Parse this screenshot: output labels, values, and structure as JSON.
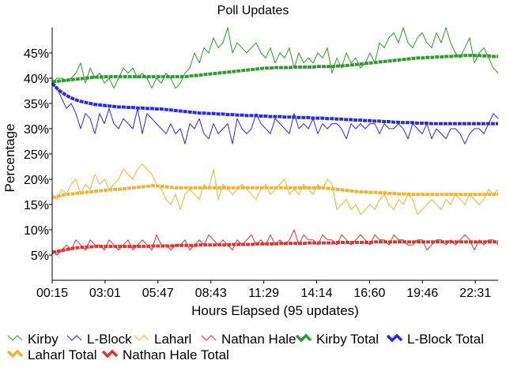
{
  "chart_data": {
    "type": "line",
    "title": "Poll Updates",
    "xlabel": "Hours Elapsed (95 updates)",
    "ylabel": "Percentage",
    "x_tick_labels": [
      "00:15",
      "03:01",
      "05:47",
      "08:43",
      "11:29",
      "14:14",
      "16:60",
      "19:46",
      "22:31"
    ],
    "y_ticks": [
      5,
      10,
      15,
      20,
      25,
      30,
      35,
      40,
      45
    ],
    "y_tick_suffix": "%",
    "ylim": [
      0,
      50
    ],
    "x_count": 95,
    "grid": false,
    "legend_position": "bottom",
    "series": [
      {
        "name": "Kirby",
        "color": "#2e9b2e",
        "style": "thin",
        "values": [
          39,
          40,
          40,
          39.5,
          40,
          41,
          43,
          39,
          42,
          40,
          41,
          39,
          40,
          38,
          40,
          42,
          41,
          42,
          40,
          41,
          40,
          38,
          40,
          39,
          41,
          40,
          38,
          39,
          41,
          42,
          45,
          43,
          46,
          45,
          48,
          46,
          47,
          50,
          45,
          47,
          46,
          45,
          46,
          47,
          45,
          44,
          46,
          43,
          45,
          44,
          46,
          42,
          45,
          43,
          44,
          43,
          45,
          44,
          46,
          41,
          44,
          42,
          45,
          43,
          44,
          42,
          43,
          45,
          43,
          47,
          46,
          48,
          49,
          47,
          50,
          47,
          46,
          48,
          49,
          47,
          46,
          49,
          47,
          50,
          47,
          45,
          44,
          46,
          48,
          43,
          45,
          46,
          44,
          42,
          41
        ]
      },
      {
        "name": "L-Block",
        "color": "#2b2bdc",
        "style": "thin",
        "values": [
          39,
          38,
          36,
          34,
          35,
          33,
          30,
          33,
          32,
          29,
          33,
          31,
          34,
          31,
          30,
          32,
          31,
          30,
          34,
          29,
          33,
          32,
          31,
          30,
          29,
          31,
          29,
          30,
          27,
          31,
          30,
          32,
          29,
          28,
          31,
          29,
          30,
          31,
          27,
          32,
          30,
          29,
          30,
          33,
          31,
          30,
          29,
          32,
          31,
          30,
          29,
          33,
          30,
          31,
          30,
          32,
          29,
          31,
          30,
          31,
          31,
          30,
          28,
          31,
          30,
          31,
          30,
          31,
          31,
          29,
          31,
          30,
          30,
          31,
          30,
          28,
          31,
          30,
          29,
          31,
          28,
          30,
          29,
          28,
          30,
          30,
          29,
          27,
          29,
          30,
          30,
          29,
          31,
          33,
          32
        ]
      },
      {
        "name": "Laharl",
        "color": "#f5b331",
        "style": "thin",
        "values": [
          17,
          16,
          18,
          17,
          19,
          20,
          17,
          19,
          18,
          21,
          19,
          20,
          18,
          19,
          20,
          22,
          21,
          20,
          22,
          23,
          22,
          21,
          19,
          18,
          16,
          15,
          17,
          14,
          17,
          18,
          17,
          16,
          19,
          18,
          22,
          16,
          19,
          18,
          17,
          18,
          19,
          18,
          17,
          16,
          18,
          19,
          17,
          18,
          19,
          20,
          17,
          18,
          17,
          19,
          18,
          17,
          19,
          18,
          20,
          19,
          14,
          15,
          16,
          14,
          15,
          13,
          14,
          15,
          14,
          16,
          17,
          15,
          14,
          16,
          15,
          17,
          16,
          13,
          14,
          15,
          16,
          15,
          14,
          16,
          15,
          17,
          16,
          15,
          17,
          16,
          15,
          16,
          18,
          17,
          18
        ]
      },
      {
        "name": "Nathan Hale",
        "color": "#e23232",
        "style": "thin",
        "values": [
          6,
          5,
          6,
          7,
          6,
          8,
          7,
          6,
          8,
          7,
          7,
          6,
          8,
          7,
          6,
          7,
          8,
          6,
          7,
          8,
          7,
          6,
          9,
          7,
          7,
          6,
          7,
          7,
          8,
          6,
          7,
          8,
          7,
          9,
          8,
          7,
          8,
          7,
          6,
          8,
          7,
          8,
          9,
          7,
          8,
          7,
          9,
          7,
          8,
          7,
          8,
          10,
          7,
          9,
          8,
          8,
          7,
          9,
          8,
          8,
          7,
          9,
          8,
          7,
          8,
          9,
          8,
          7,
          9,
          8,
          8,
          7,
          9,
          8,
          8,
          7,
          7,
          8,
          8,
          6,
          7,
          8,
          8,
          7,
          8,
          7,
          8,
          9,
          8,
          6,
          8,
          7,
          8,
          8,
          7
        ]
      },
      {
        "name": "Kirby Total",
        "color": "#2e9b2e",
        "style": "thick",
        "values": [
          39.3,
          39.4,
          39.5,
          39.6,
          39.7,
          39.8,
          39.9,
          40,
          40.1,
          40.2,
          40.2,
          40.3,
          40.3,
          40.3,
          40.3,
          40.3,
          40.3,
          40.3,
          40.3,
          40.3,
          40.3,
          40.3,
          40.3,
          40.3,
          40.3,
          40.3,
          40.3,
          40.3,
          40.3,
          40.4,
          40.5,
          40.6,
          40.7,
          40.8,
          40.9,
          41,
          41.1,
          41.2,
          41.3,
          41.4,
          41.5,
          41.6,
          41.7,
          41.8,
          41.9,
          42,
          42,
          42.1,
          42.1,
          42.1,
          42.1,
          42.2,
          42.2,
          42.2,
          42.2,
          42.2,
          42.3,
          42.3,
          42.3,
          42.3,
          42.4,
          42.4,
          42.5,
          42.6,
          42.7,
          42.8,
          42.9,
          43,
          43.1,
          43.2,
          43.3,
          43.4,
          43.5,
          43.6,
          43.7,
          43.8,
          43.9,
          44,
          44,
          44.1,
          44.1,
          44.2,
          44.2,
          44.3,
          44.3,
          44.4,
          44.4,
          44.5,
          44.5,
          44.5,
          44.5,
          44.4,
          44.4,
          44.3,
          44.3
        ]
      },
      {
        "name": "L-Block Total",
        "color": "#2b2bdc",
        "style": "thick",
        "values": [
          39,
          38,
          37.2,
          36.6,
          36.1,
          35.7,
          35.4,
          35.2,
          35,
          34.8,
          34.7,
          34.6,
          34.5,
          34.4,
          34.3,
          34.3,
          34.2,
          34.2,
          34.1,
          34.1,
          34,
          34,
          33.9,
          33.9,
          33.8,
          33.7,
          33.6,
          33.5,
          33.4,
          33.3,
          33.2,
          33.1,
          33.1,
          33,
          33,
          32.9,
          32.9,
          32.8,
          32.8,
          32.7,
          32.7,
          32.6,
          32.6,
          32.6,
          32.5,
          32.5,
          32.4,
          32.4,
          32.4,
          32.3,
          32.3,
          32.3,
          32.2,
          32.2,
          32.2,
          32.1,
          32.1,
          32.1,
          32,
          32,
          31.9,
          31.9,
          31.8,
          31.8,
          31.7,
          31.7,
          31.6,
          31.6,
          31.5,
          31.5,
          31.4,
          31.4,
          31.3,
          31.3,
          31.2,
          31.2,
          31.2,
          31.1,
          31.1,
          31.1,
          31,
          31,
          31,
          31,
          31,
          31,
          31,
          31,
          31,
          31,
          31,
          31,
          31,
          31,
          31
        ]
      },
      {
        "name": "Laharl Total",
        "color": "#f5b331",
        "style": "thick",
        "values": [
          16.3,
          16.6,
          16.8,
          17,
          17.1,
          17.2,
          17.3,
          17.4,
          17.5,
          17.6,
          17.7,
          17.8,
          17.9,
          18,
          18,
          18.1,
          18.2,
          18.3,
          18.4,
          18.5,
          18.6,
          18.7,
          18.7,
          18.6,
          18.5,
          18.4,
          18.3,
          18.3,
          18.3,
          18.3,
          18.3,
          18.3,
          18.3,
          18.3,
          18.3,
          18.3,
          18.3,
          18.3,
          18.3,
          18.3,
          18.3,
          18.3,
          18.3,
          18.3,
          18.3,
          18.3,
          18.3,
          18.3,
          18.3,
          18.3,
          18.3,
          18.3,
          18.3,
          18.3,
          18.3,
          18.3,
          18.3,
          18.3,
          18.2,
          18.1,
          18,
          17.9,
          17.8,
          17.7,
          17.6,
          17.5,
          17.5,
          17.4,
          17.4,
          17.3,
          17.3,
          17.2,
          17.2,
          17.1,
          17.1,
          17.1,
          17,
          17,
          17,
          17,
          17,
          17,
          17,
          17,
          17,
          17,
          17,
          17,
          17,
          17,
          17,
          17,
          17,
          17,
          17
        ]
      },
      {
        "name": "Nathan Hale Total",
        "color": "#e23232",
        "style": "thick",
        "values": [
          5.5,
          5.7,
          5.9,
          6.1,
          6.3,
          6.4,
          6.5,
          6.6,
          6.6,
          6.7,
          6.7,
          6.7,
          6.7,
          6.7,
          6.7,
          6.7,
          6.7,
          6.7,
          6.7,
          6.7,
          6.7,
          6.8,
          6.8,
          6.8,
          6.8,
          6.8,
          6.9,
          6.9,
          6.9,
          6.9,
          6.9,
          7,
          7,
          7,
          7,
          7,
          7,
          7,
          7.1,
          7.1,
          7.1,
          7.1,
          7.1,
          7.2,
          7.2,
          7.2,
          7.2,
          7.2,
          7.3,
          7.3,
          7.3,
          7.3,
          7.3,
          7.3,
          7.4,
          7.4,
          7.4,
          7.4,
          7.4,
          7.4,
          7.5,
          7.5,
          7.5,
          7.5,
          7.5,
          7.5,
          7.5,
          7.5,
          7.6,
          7.6,
          7.6,
          7.6,
          7.6,
          7.6,
          7.6,
          7.6,
          7.6,
          7.6,
          7.6,
          7.6,
          7.6,
          7.6,
          7.6,
          7.6,
          7.6,
          7.6,
          7.6,
          7.6,
          7.6,
          7.6,
          7.6,
          7.6,
          7.6,
          7.6,
          7.6
        ]
      }
    ]
  }
}
